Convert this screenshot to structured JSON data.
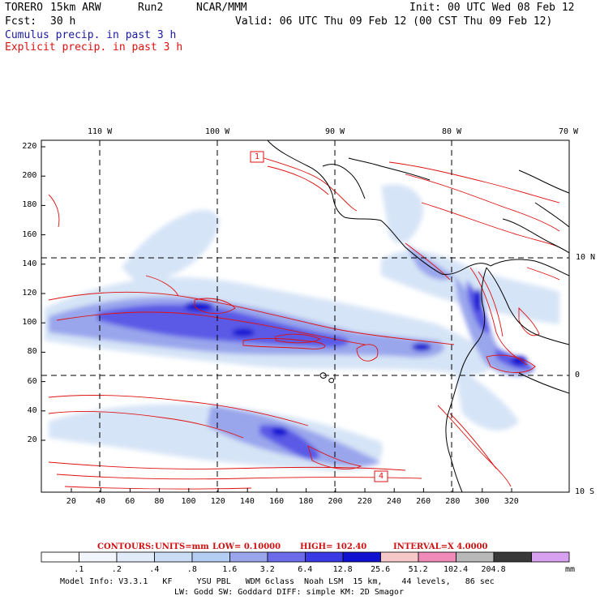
{
  "header": {
    "model": "TORERO",
    "resolution": "15km ARW",
    "run": "Run2",
    "org": "NCAR/MMM",
    "init": "Init: 00 UTC Wed 08 Feb 12",
    "fcst_label": "Fcst:",
    "fcst_value": "30 h",
    "valid": "Valid: 06 UTC Thu 09 Feb 12 (00 CST Thu 09 Feb 12)"
  },
  "legend_lines": {
    "cumulus": "Cumulus precip. in past 3 h",
    "explicit": "Explicit precip. in past 3 h"
  },
  "map": {
    "lon_labels": [
      "110 W",
      "100 W",
      "90 W",
      "80 W",
      "70 W"
    ],
    "lat_labels": [
      "10 N",
      "0",
      "10 S"
    ],
    "y_grid_labels": [
      "220",
      "200",
      "180",
      "160",
      "140",
      "120",
      "100",
      "80",
      "60",
      "40",
      "20"
    ],
    "x_grid_labels": [
      "20",
      "40",
      "60",
      "80",
      "100",
      "120",
      "140",
      "160",
      "180",
      "200",
      "220",
      "240",
      "260",
      "280",
      "300",
      "320"
    ],
    "box_labels": [
      "1",
      "4"
    ],
    "colors": {
      "land_outline": "#000000",
      "explicit_contour": "#e01010",
      "cumulus_light": "#d6e4f7",
      "cumulus_mid": "#9aa6ec",
      "cumulus_dark": "#5a5ae6",
      "cumulus_peak": "#1414d2"
    }
  },
  "contour_info": {
    "label": "CONTOURS:",
    "units": "UNITS=mm",
    "low": "LOW= 0.10000",
    "high": "HIGH= 102.40",
    "interval": "INTERVAL=X 4.0000"
  },
  "colorbar": {
    "ticks": [
      ".1",
      ".2",
      ".4",
      ".8",
      "1.6",
      "3.2",
      "6.4",
      "12.8",
      "25.6",
      "51.2",
      "102.4",
      "204.8"
    ],
    "unit": "mm",
    "colors": [
      "#ffffff",
      "#f3f7fd",
      "#e2ebf9",
      "#cbdcf5",
      "#b4cef3",
      "#9aa6ec",
      "#6c6cea",
      "#3a3ae4",
      "#1010d0",
      "#f7c8c8",
      "#f08ab8",
      "#b8b8b8",
      "#383838",
      "#d8a0f0"
    ]
  },
  "model_info": {
    "line1": "Model Info: V3.3.1   KF     YSU PBL   WDM 6class  Noah LSM  15 km,    44 levels,   86 sec",
    "line2": "LW: Godd SW: Goddard DIFF: simple KM: 2D Smagor"
  }
}
